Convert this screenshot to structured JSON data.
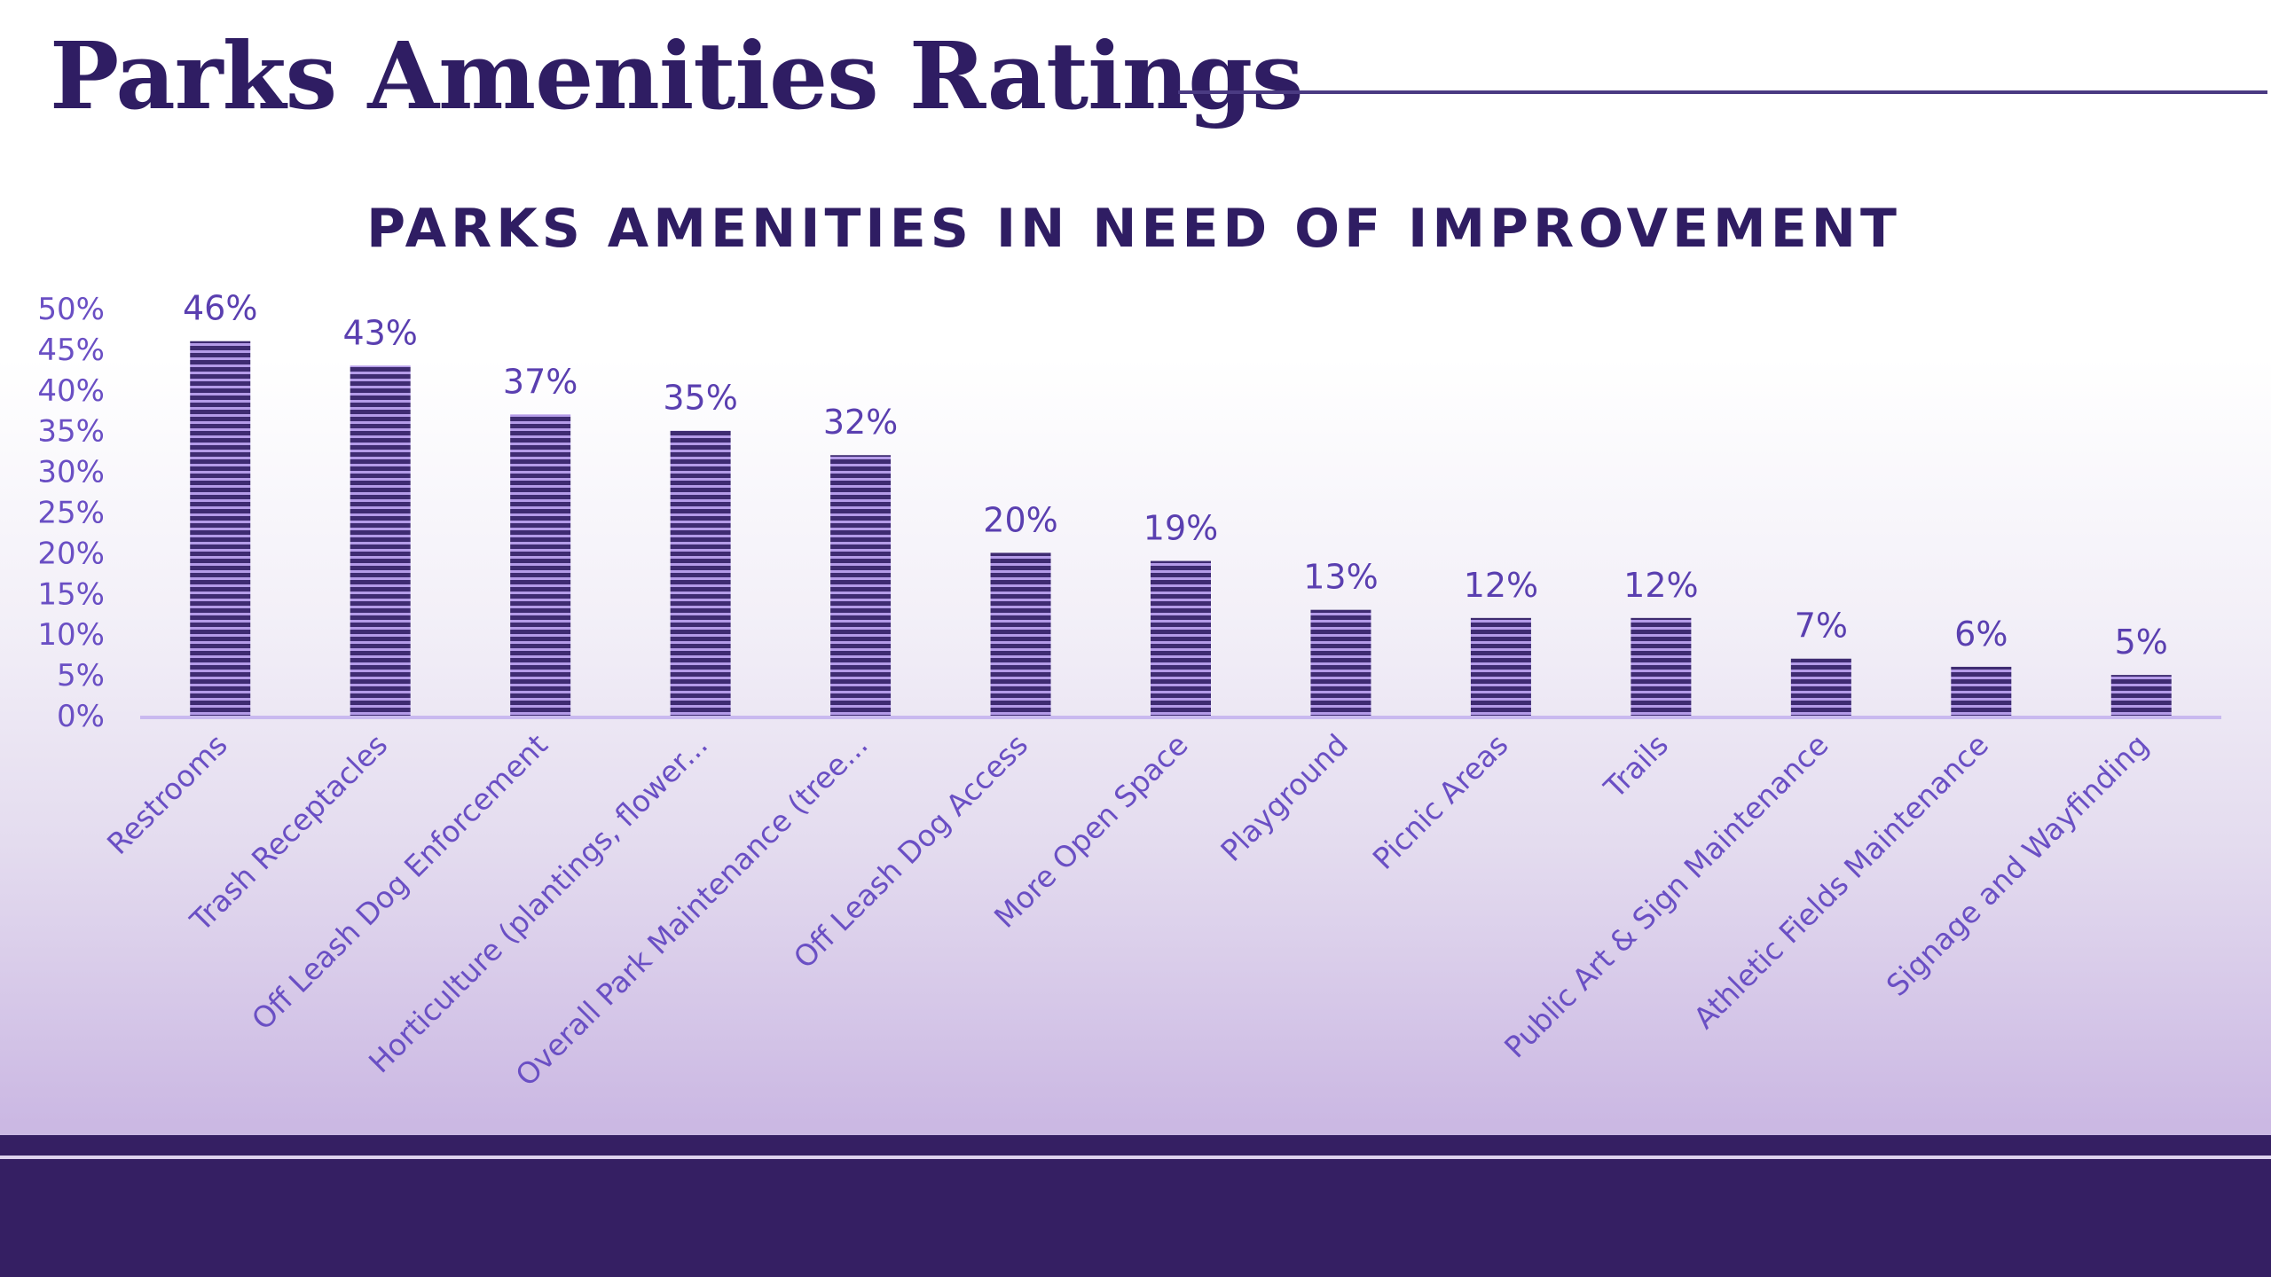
{
  "page": {
    "title": "Parks Amenities Ratings"
  },
  "colors": {
    "title": "#2f1d63",
    "chart_title": "#2f1d63",
    "tick_labels": "#6a4fc4",
    "data_labels": "#5a3fb0",
    "bar_dark": "#3e2b71",
    "bar_light": "#b49be8",
    "axis_line": "#c9b9ef",
    "footer": "#351f63"
  },
  "chart_data": {
    "type": "bar",
    "title": "PARKS AMENITIES IN NEED OF IMPROVEMENT",
    "xlabel": "",
    "ylabel": "",
    "ylim": [
      0,
      50
    ],
    "y_ticks": [
      "0%",
      "5%",
      "10%",
      "15%",
      "20%",
      "25%",
      "30%",
      "35%",
      "40%",
      "45%",
      "50%"
    ],
    "grid": false,
    "legend": "none",
    "categories": [
      "Restrooms",
      "Trash Receptacles",
      "Off Leash Dog Enforcement",
      "Horticulture (plantings, flower...",
      "Overall Park Maintenance (tree...",
      "Off Leash Dog Access",
      "More Open Space",
      "Playground",
      "Picnic Areas",
      "Trails",
      "Public Art & Sign Maintenance",
      "Athletic Fields Maintenance",
      "Signage and Wayfinding"
    ],
    "values": [
      46,
      43,
      37,
      35,
      32,
      20,
      19,
      13,
      12,
      12,
      7,
      6,
      5
    ],
    "data_labels": [
      "46%",
      "43%",
      "37%",
      "35%",
      "32%",
      "20%",
      "19%",
      "13%",
      "12%",
      "12%",
      "7%",
      "6%",
      "5%"
    ]
  }
}
